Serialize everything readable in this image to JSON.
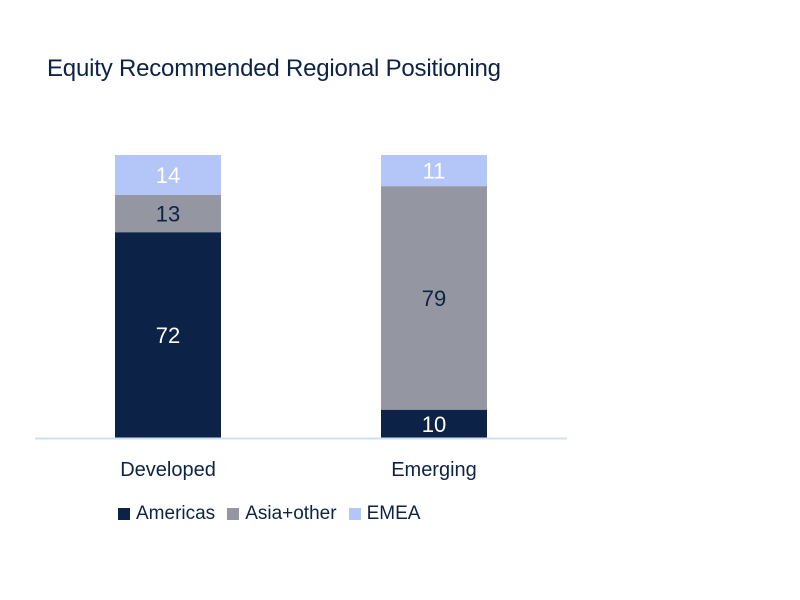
{
  "chart_data": {
    "type": "bar",
    "stacked": true,
    "title": "Equity Recommended Regional Positioning",
    "categories": [
      "Developed",
      "Emerging"
    ],
    "series": [
      {
        "name": "Americas",
        "values": [
          72,
          10
        ],
        "color": "#0c2347",
        "label_color": "#ffffff"
      },
      {
        "name": "Asia+other",
        "values": [
          13,
          79
        ],
        "color": "#9497a1",
        "label_color": "#0d2345"
      },
      {
        "name": "EMEA",
        "values": [
          14,
          11
        ],
        "color": "#b3c6f7",
        "label_color": "#ffffff"
      }
    ],
    "ylim": [
      0,
      100
    ],
    "grid": false,
    "legend_position": "bottom-left"
  }
}
